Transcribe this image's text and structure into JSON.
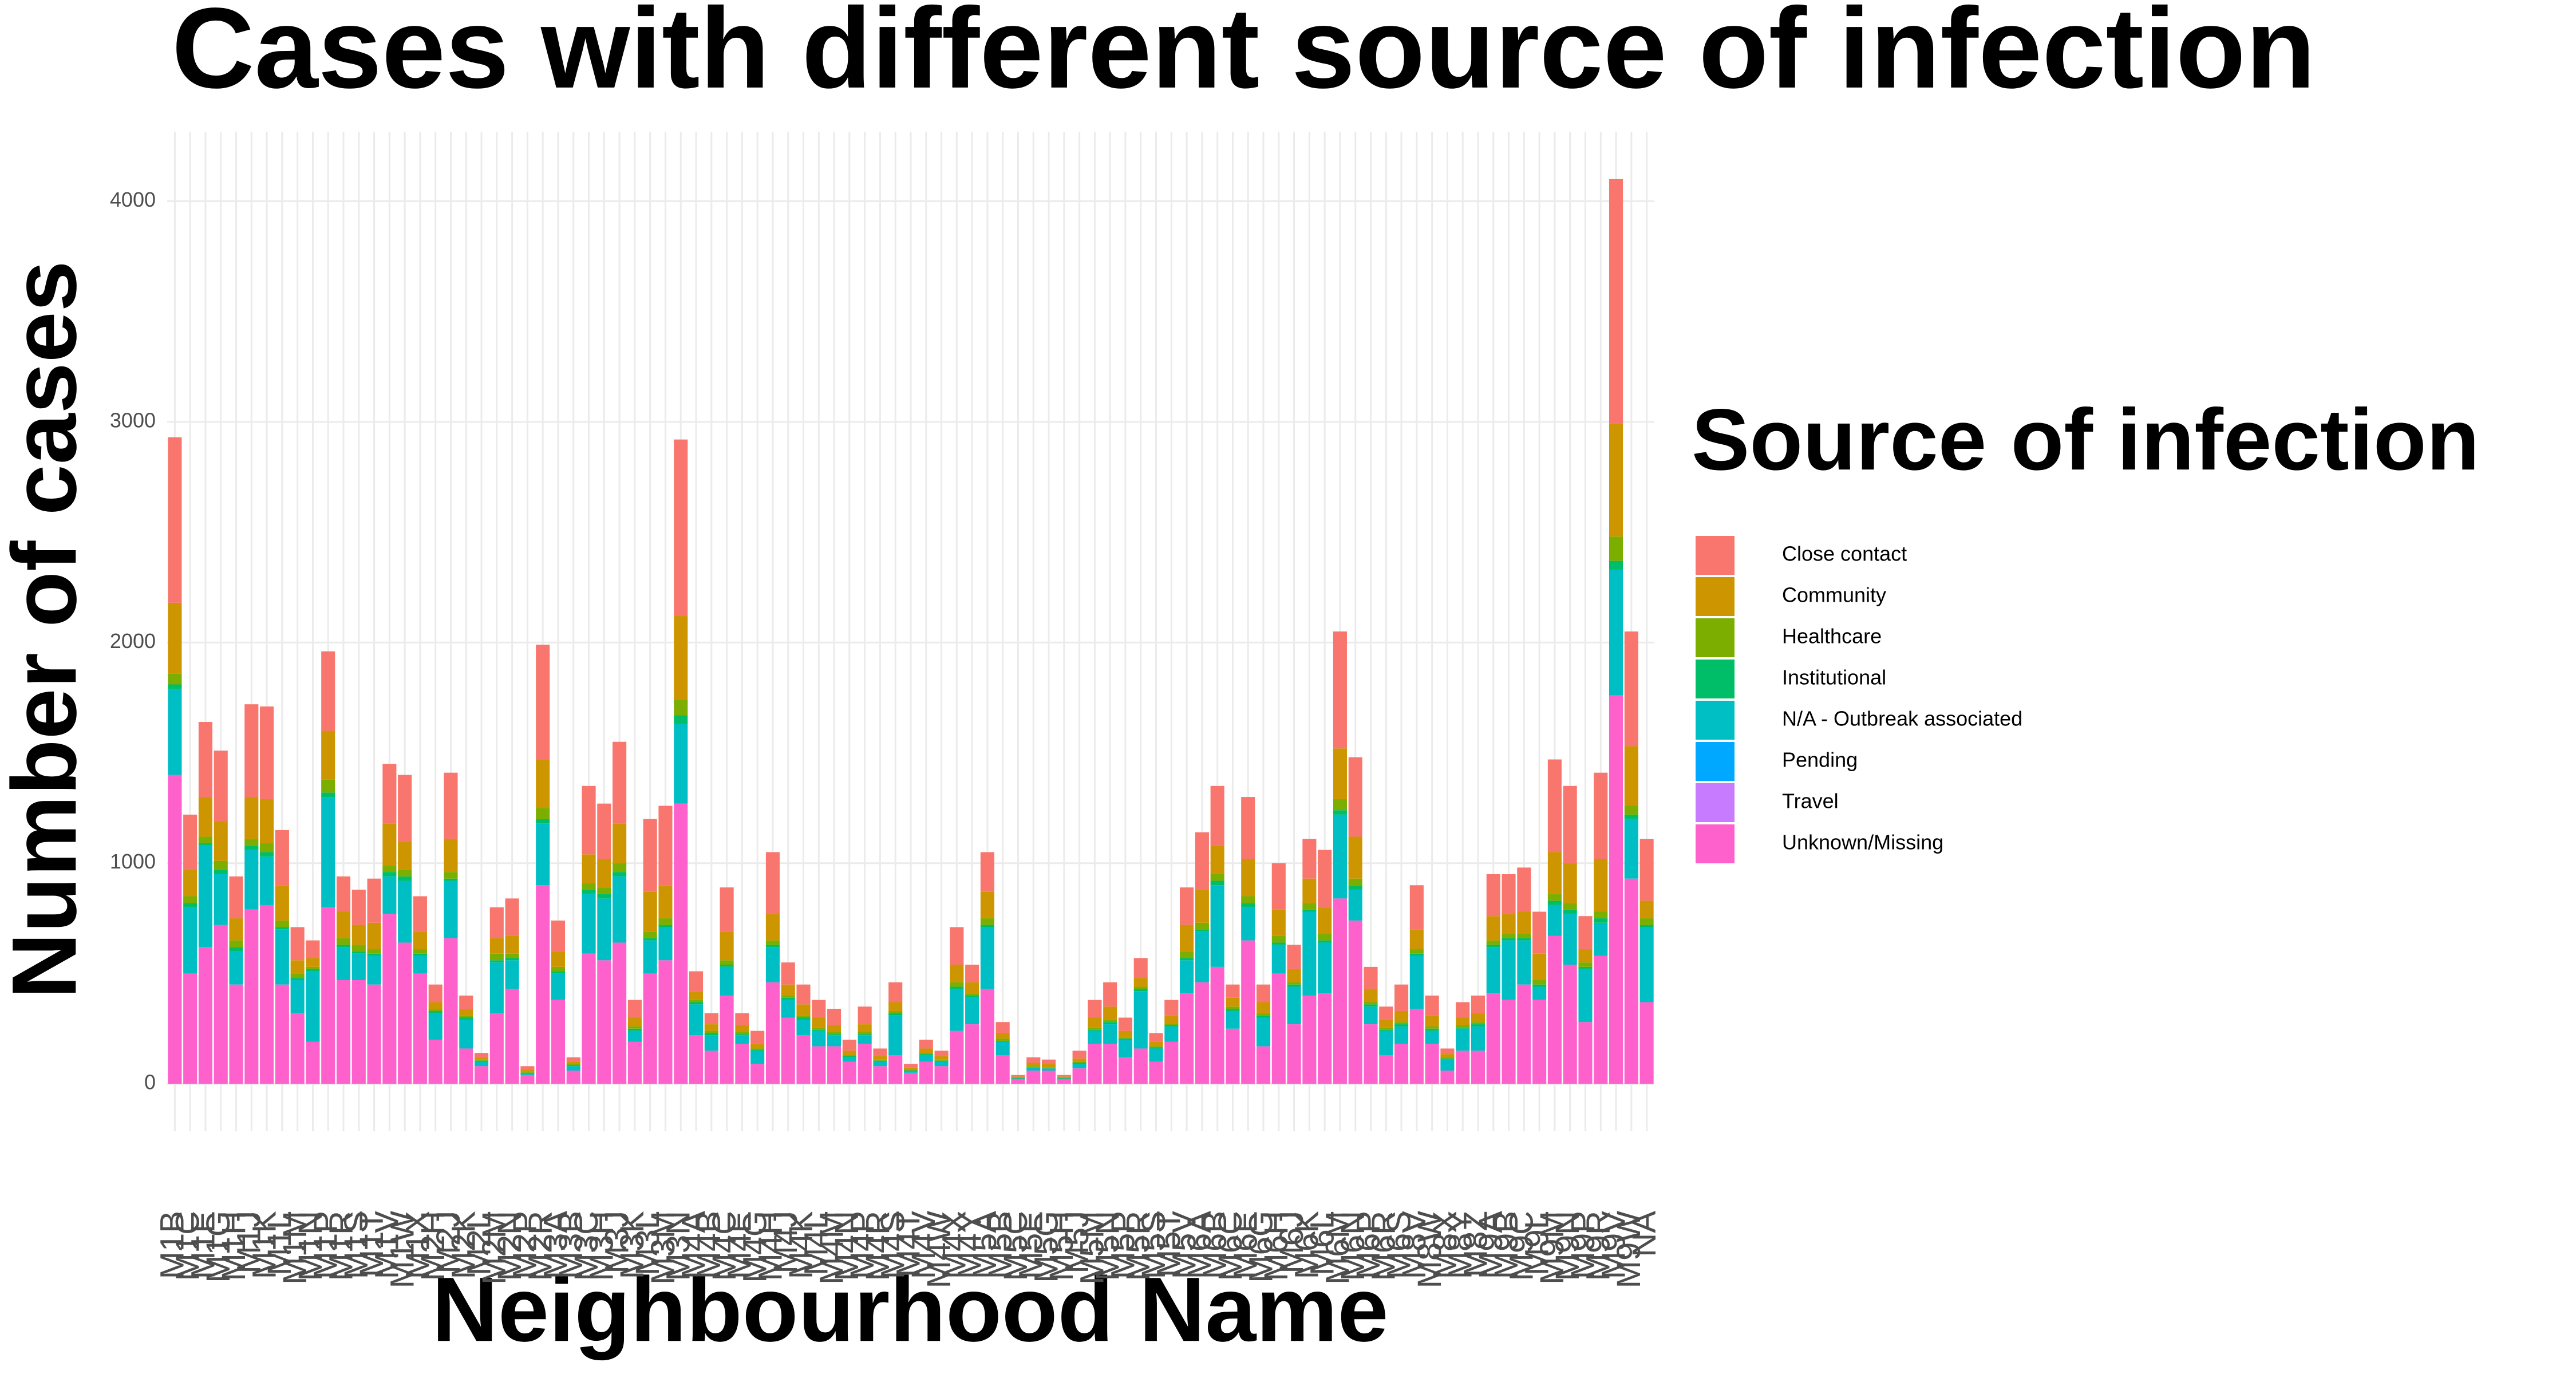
{
  "chart_data": {
    "type": "stacked_bar",
    "title": "Cases with different source of infection",
    "x_label": "Neighbourhood Name",
    "y_label": "Number of cases",
    "legend_title": "Source of infection",
    "legend_position": "right",
    "grid": true,
    "ylim": [
      -215,
      4315
    ],
    "yticks": [
      0,
      1000,
      2000,
      3000,
      4000
    ],
    "categories": [
      "M1B",
      "M1C",
      "M1E",
      "M1G",
      "M1H",
      "M1J",
      "M1K",
      "M1L",
      "M1M",
      "M1N",
      "M1P",
      "M1R",
      "M1S",
      "M1T",
      "M1V",
      "M1W",
      "M1X",
      "M2H",
      "M2J",
      "M2K",
      "M2L",
      "M2M",
      "M2N",
      "M2P",
      "M2R",
      "M3A",
      "M3B",
      "M3C",
      "M3H",
      "M3J",
      "M3K",
      "M3L",
      "M3M",
      "M3N",
      "M4A",
      "M4B",
      "M4C",
      "M4E",
      "M4G",
      "M4H",
      "M4J",
      "M4K",
      "M4L",
      "M4M",
      "M4N",
      "M4P",
      "M4R",
      "M4S",
      "M4T",
      "M4V",
      "M4W",
      "M4X",
      "M4Y",
      "M5A",
      "M5B",
      "M5C",
      "M5E",
      "M5G",
      "M5H",
      "M5J",
      "M5M",
      "M5N",
      "M5P",
      "M5R",
      "M5S",
      "M5T",
      "M5V",
      "M6A",
      "M6B",
      "M6C",
      "M6E",
      "M6G",
      "M6H",
      "M6J",
      "M6K",
      "M6L",
      "M6M",
      "M6N",
      "M6P",
      "M6R",
      "M6S",
      "M8V",
      "M8W",
      "M8X",
      "M8Y",
      "M8Z",
      "M9A",
      "M9B",
      "M9C",
      "M9L",
      "M9M",
      "M9N",
      "M9P",
      "M9R",
      "M9V",
      "M9W",
      "NA"
    ],
    "series": [
      {
        "name": "Close contact",
        "color": "#F8766D",
        "values": [
          750,
          250,
          340,
          320,
          190,
          420,
          420,
          250,
          150,
          80,
          360,
          160,
          160,
          200,
          270,
          300,
          160,
          80,
          300,
          60,
          20,
          140,
          170,
          15,
          520,
          140,
          20,
          310,
          250,
          370,
          80,
          330,
          360,
          800,
          90,
          50,
          200,
          55,
          60,
          280,
          100,
          90,
          80,
          75,
          50,
          80,
          35,
          90,
          15,
          40,
          25,
          170,
          80,
          180,
          50,
          7,
          25,
          20,
          7,
          35,
          80,
          110,
          60,
          90,
          40,
          70,
          170,
          260,
          270,
          60,
          280,
          80,
          210,
          110,
          180,
          260,
          530,
          360,
          100,
          60,
          120,
          200,
          90,
          25,
          70,
          80,
          190,
          180,
          200,
          190,
          420,
          350,
          150,
          390,
          1110,
          520,
          280
        ]
      },
      {
        "name": "Community",
        "color": "#CD9600",
        "values": [
          320,
          120,
          180,
          180,
          100,
          190,
          200,
          160,
          60,
          40,
          220,
          120,
          90,
          120,
          190,
          130,
          80,
          30,
          150,
          30,
          10,
          70,
          80,
          10,
          220,
          70,
          10,
          130,
          130,
          180,
          40,
          180,
          150,
          380,
          40,
          30,
          130,
          30,
          20,
          120,
          50,
          50,
          45,
          30,
          20,
          35,
          15,
          40,
          10,
          20,
          15,
          80,
          50,
          120,
          25,
          5,
          15,
          15,
          5,
          15,
          45,
          60,
          30,
          40,
          20,
          35,
          120,
          150,
          130,
          40,
          170,
          50,
          120,
          60,
          110,
          120,
          230,
          190,
          60,
          35,
          50,
          90,
          50,
          15,
          35,
          40,
          110,
          90,
          100,
          120,
          190,
          180,
          60,
          240,
          510,
          270,
          80
        ]
      },
      {
        "name": "Healthcare",
        "color": "#7CAE00",
        "values": [
          50,
          30,
          30,
          40,
          30,
          30,
          40,
          30,
          20,
          10,
          60,
          30,
          30,
          20,
          30,
          30,
          20,
          10,
          30,
          10,
          5,
          30,
          20,
          5,
          50,
          20,
          5,
          30,
          30,
          40,
          10,
          30,
          30,
          70,
          10,
          10,
          20,
          10,
          5,
          20,
          10,
          10,
          10,
          10,
          5,
          10,
          5,
          10,
          5,
          5,
          5,
          20,
          10,
          30,
          10,
          3,
          5,
          5,
          3,
          5,
          10,
          10,
          5,
          10,
          5,
          10,
          30,
          30,
          30,
          10,
          30,
          10,
          30,
          10,
          30,
          30,
          50,
          30,
          10,
          10,
          10,
          20,
          10,
          5,
          10,
          10,
          20,
          20,
          20,
          20,
          30,
          30,
          20,
          30,
          110,
          40,
          30
        ]
      },
      {
        "name": "Institutional",
        "color": "#00BE67",
        "values": [
          20,
          20,
          10,
          20,
          20,
          20,
          20,
          10,
          10,
          10,
          20,
          10,
          10,
          10,
          20,
          20,
          10,
          10,
          10,
          10,
          5,
          10,
          10,
          0,
          20,
          10,
          5,
          20,
          20,
          20,
          10,
          10,
          10,
          40,
          10,
          10,
          10,
          5,
          5,
          10,
          10,
          10,
          5,
          5,
          5,
          5,
          5,
          10,
          0,
          5,
          5,
          10,
          10,
          10,
          5,
          0,
          0,
          0,
          0,
          5,
          5,
          10,
          5,
          10,
          5,
          5,
          10,
          10,
          20,
          10,
          20,
          10,
          10,
          10,
          10,
          10,
          20,
          20,
          10,
          5,
          10,
          10,
          10,
          5,
          5,
          10,
          10,
          10,
          10,
          10,
          20,
          20,
          10,
          20,
          40,
          20,
          10
        ]
      },
      {
        "name": "N/A - Outbreak associated",
        "color": "#00BFC4",
        "values": [
          390,
          300,
          460,
          230,
          150,
          270,
          220,
          250,
          150,
          320,
          500,
          150,
          120,
          130,
          170,
          280,
          80,
          120,
          260,
          130,
          20,
          230,
          130,
          10,
          280,
          120,
          20,
          270,
          280,
          300,
          50,
          150,
          150,
          360,
          140,
          70,
          130,
          40,
          60,
          160,
          80,
          70,
          70,
          50,
          20,
          40,
          20,
          180,
          10,
          30,
          20,
          190,
          120,
          280,
          60,
          5,
          15,
          10,
          5,
          20,
          60,
          90,
          80,
          260,
          60,
          70,
          150,
          230,
          370,
          80,
          150,
          130,
          130,
          170,
          380,
          230,
          380,
          140,
          80,
          110,
          80,
          240,
          60,
          50,
          100,
          110,
          210,
          270,
          200,
          60,
          140,
          230,
          240,
          150,
          570,
          270,
          340
        ]
      },
      {
        "name": "Pending",
        "color": "#00A9FF",
        "values": [
          0,
          0,
          0,
          0,
          0,
          0,
          0,
          0,
          0,
          0,
          0,
          0,
          0,
          0,
          0,
          0,
          0,
          0,
          0,
          0,
          0,
          0,
          0,
          0,
          0,
          0,
          0,
          0,
          0,
          0,
          0,
          0,
          0,
          0,
          0,
          0,
          0,
          0,
          0,
          0,
          0,
          0,
          0,
          0,
          0,
          0,
          0,
          0,
          0,
          0,
          0,
          0,
          0,
          0,
          0,
          0,
          0,
          0,
          0,
          0,
          0,
          0,
          0,
          0,
          0,
          0,
          0,
          0,
          0,
          0,
          0,
          0,
          0,
          0,
          0,
          0,
          0,
          0,
          0,
          0,
          0,
          0,
          0,
          0,
          0,
          0,
          0,
          0,
          0,
          0,
          0,
          0,
          0,
          0,
          0,
          0,
          0
        ]
      },
      {
        "name": "Travel",
        "color": "#C77CFF",
        "values": [
          0,
          0,
          0,
          0,
          0,
          0,
          0,
          0,
          0,
          0,
          0,
          0,
          0,
          0,
          0,
          0,
          0,
          0,
          0,
          0,
          0,
          0,
          0,
          0,
          0,
          0,
          0,
          0,
          0,
          0,
          0,
          0,
          0,
          0,
          0,
          0,
          0,
          0,
          0,
          0,
          0,
          0,
          0,
          0,
          0,
          0,
          0,
          0,
          0,
          0,
          0,
          0,
          0,
          0,
          0,
          0,
          0,
          0,
          0,
          0,
          0,
          0,
          0,
          0,
          0,
          0,
          0,
          0,
          0,
          0,
          0,
          0,
          0,
          0,
          0,
          0,
          0,
          0,
          0,
          0,
          0,
          0,
          0,
          0,
          0,
          0,
          0,
          0,
          0,
          0,
          0,
          0,
          0,
          0,
          0,
          0,
          0
        ]
      },
      {
        "name": "Unknown/Missing",
        "color": "#FF61CC",
        "values": [
          1400,
          500,
          620,
          720,
          450,
          790,
          810,
          450,
          320,
          190,
          800,
          470,
          470,
          450,
          770,
          640,
          500,
          200,
          660,
          160,
          80,
          320,
          430,
          40,
          900,
          380,
          60,
          590,
          560,
          640,
          190,
          500,
          560,
          1270,
          220,
          150,
          400,
          180,
          90,
          460,
          300,
          220,
          170,
          170,
          100,
          180,
          80,
          130,
          50,
          100,
          80,
          240,
          270,
          430,
          130,
          20,
          60,
          60,
          20,
          70,
          180,
          180,
          120,
          160,
          100,
          190,
          410,
          460,
          530,
          250,
          650,
          170,
          500,
          270,
          400,
          410,
          840,
          740,
          270,
          130,
          180,
          340,
          180,
          60,
          150,
          150,
          410,
          380,
          450,
          380,
          670,
          540,
          280,
          580,
          1760,
          930,
          370
        ]
      }
    ]
  }
}
